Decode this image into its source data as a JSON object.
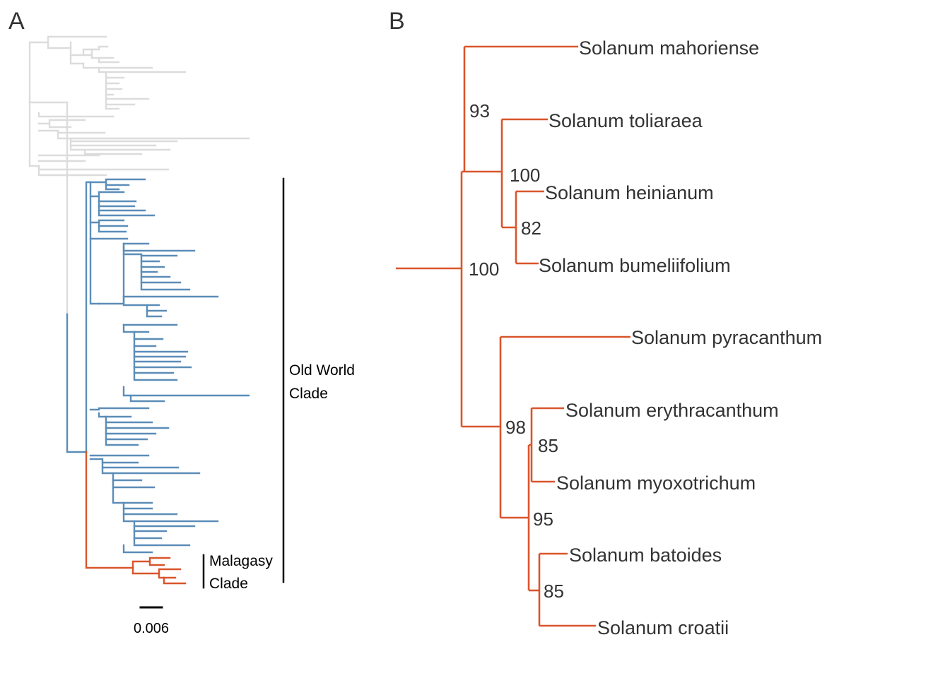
{
  "panels": {
    "a": "A",
    "b": "B"
  },
  "colors": {
    "other": "#dcdcdc",
    "old_world": "#5b8db8",
    "malagasy": "#d9552b",
    "bar": "#000000"
  },
  "panel_a": {
    "old_world_label_1": "Old World",
    "old_world_label_2": "Clade",
    "malagasy_label_1": "Malagasy",
    "malagasy_label_2": "Clade",
    "scale_bar_label": "0.006"
  },
  "panel_b": {
    "taxa": [
      "Solanum mahoriense",
      "Solanum toliaraea",
      "Solanum heinianum",
      "Solanum bumeliifolium",
      "Solanum pyracanthum",
      "Solanum erythracanthum",
      "Solanum myoxotrichum",
      "Solanum batoides",
      "Solanum croatii"
    ],
    "supports": {
      "root": "100",
      "n93": "93",
      "n100b": "100",
      "n82": "82",
      "n98": "98",
      "n95": "95",
      "n85a": "85",
      "n85b": "85"
    }
  }
}
